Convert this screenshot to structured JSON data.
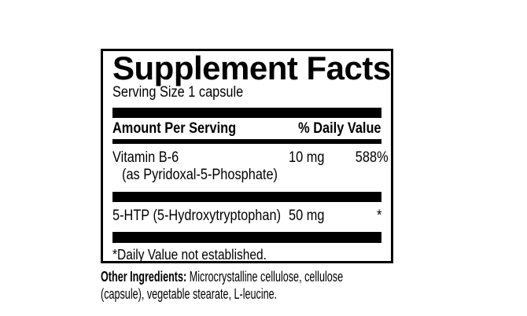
{
  "colors": {
    "ink": "#000000",
    "background": "#ffffff"
  },
  "panel": {
    "title": "Supplement Facts",
    "serving_size": "Serving Size 1 capsule",
    "header": {
      "amount_col": "Amount Per Serving",
      "dv_col": "% Daily Value"
    },
    "rows": [
      {
        "name": "Vitamin B-6",
        "detail": "(as Pyridoxal-5-Phosphate)",
        "amount": "10 mg",
        "daily_value": "588%"
      },
      {
        "name": "5-HTP (5-Hydroxytryptophan)",
        "amount": "50 mg",
        "daily_value": "*"
      }
    ],
    "footnote": "*Daily Value not established."
  },
  "other_ingredients": {
    "label": "Other Ingredients:",
    "text": "Microcrystalline cellulose, cellulose (capsule), vegetable stearate, L-leucine."
  }
}
